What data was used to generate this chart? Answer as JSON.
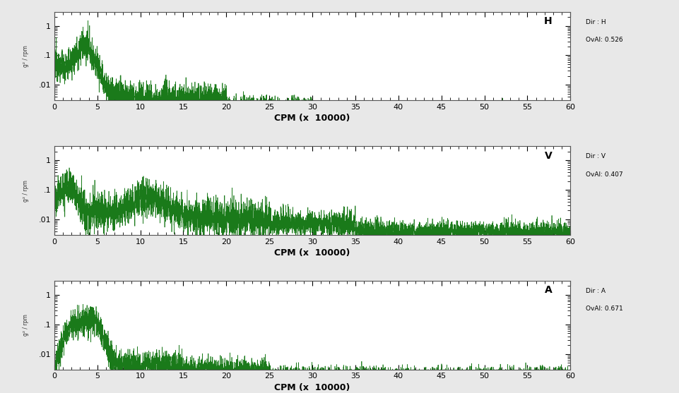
{
  "background_color": "#e8e8e8",
  "plot_bg_color": "#ffffff",
  "line_color": "#1a7a1a",
  "line_width": 0.5,
  "xlabel": "CPM (x  10000)",
  "xlabel_fontsize": 9,
  "tick_label_fontsize": 8,
  "xlim": [
    0,
    60
  ],
  "yticks": [
    0.01,
    0.1,
    1
  ],
  "ytick_labels": [
    ".01",
    ".1",
    "1"
  ],
  "xticks": [
    0,
    5,
    10,
    15,
    20,
    25,
    30,
    35,
    40,
    45,
    50,
    55,
    60
  ],
  "panels": [
    {
      "label": "H",
      "dir_label": "Dir : H",
      "oval_label": "OvAl: 0.526"
    },
    {
      "label": "V",
      "dir_label": "Dir : V",
      "oval_label": "OvAl: 0.407"
    },
    {
      "label": "A",
      "dir_label": "Dir : A",
      "oval_label": "OvAl: 0.671"
    }
  ]
}
